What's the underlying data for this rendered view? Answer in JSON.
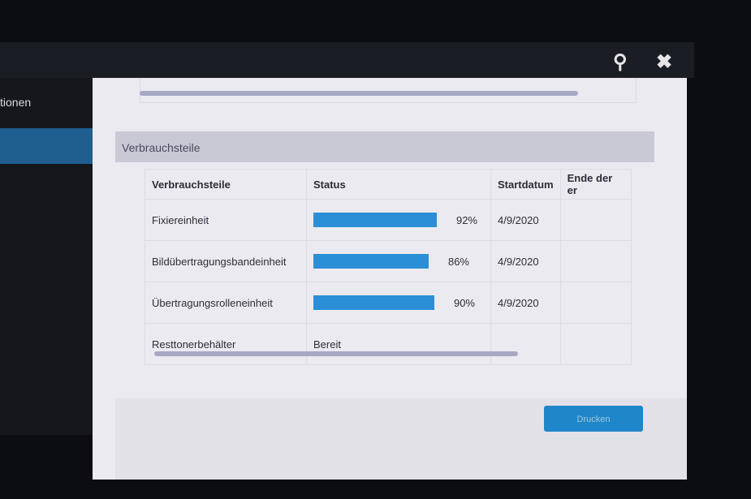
{
  "header": {
    "search_icon": "search-icon",
    "close_icon": "close-icon"
  },
  "sidebar": {
    "items": [
      {
        "label": "tionen",
        "selected": false
      },
      {
        "label": "",
        "selected": true
      }
    ]
  },
  "section": {
    "title": "Verbrauchsteile"
  },
  "table": {
    "columns": [
      "Verbrauchsteile",
      "Status",
      "Startdatum",
      "Ende der er"
    ],
    "rows": [
      {
        "name": "Fixiereinheit",
        "status_percent": 92,
        "status_label": "92%",
        "start": "4/9/2020",
        "end": ""
      },
      {
        "name": "Bildübertragungsbandeinheit",
        "status_percent": 86,
        "status_label": "86%",
        "start": "4/9/2020",
        "end": ""
      },
      {
        "name": "Übertragungsrolleneinheit",
        "status_percent": 90,
        "status_label": "90%",
        "start": "4/9/2020",
        "end": ""
      },
      {
        "name": "Resttonerbehälter",
        "status_percent": null,
        "status_label": "Bereit",
        "start": "",
        "end": ""
      }
    ]
  },
  "footer": {
    "print_label": "Drucken"
  },
  "colors": {
    "accent": "#2a8fd6",
    "selected": "#1f5f8f"
  }
}
